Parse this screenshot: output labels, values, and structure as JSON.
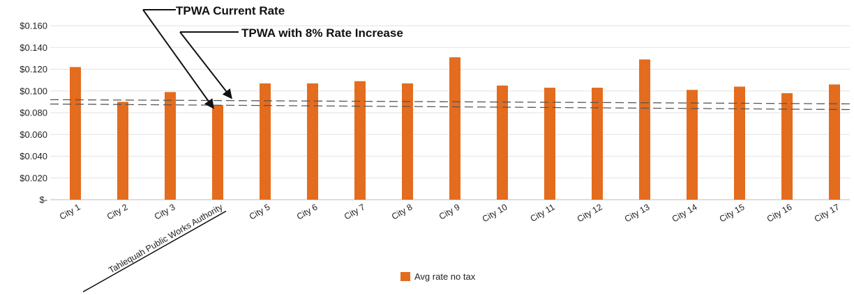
{
  "chart_data": {
    "type": "bar",
    "title": "",
    "xlabel": "",
    "ylabel": "",
    "ylim": [
      0,
      0.16
    ],
    "yticks": [
      0,
      0.02,
      0.04,
      0.06,
      0.08,
      0.1,
      0.12,
      0.14,
      0.16
    ],
    "ytick_labels": [
      "$-",
      "$0.020",
      "$0.040",
      "$0.060",
      "$0.080",
      "$0.100",
      "$0.120",
      "$0.140",
      "$0.160"
    ],
    "grid": true,
    "legend_position": "bottom",
    "categories": [
      "City 1",
      "City 2",
      "City 3",
      "Tahlequah Public Works Authority",
      "City 5",
      "City 6",
      "City 7",
      "City 8",
      "City 9",
      "City 10",
      "City 11",
      "City 12",
      "City 13",
      "City 14",
      "City 15",
      "City 16",
      "City 17"
    ],
    "series": [
      {
        "name": "Avg rate no tax",
        "color": "#e46c1e",
        "values": [
          0.122,
          0.09,
          0.099,
          0.087,
          0.107,
          0.107,
          0.109,
          0.107,
          0.131,
          0.105,
          0.103,
          0.103,
          0.129,
          0.101,
          0.104,
          0.098,
          0.106
        ]
      }
    ],
    "reference_lines": [
      {
        "label": "TPWA Current Rate",
        "value": 0.088
      },
      {
        "label": "TPWA with 8% Rate Increase",
        "value": 0.092
      }
    ],
    "highlighted_category": "Tahlequah Public Works Authority"
  }
}
